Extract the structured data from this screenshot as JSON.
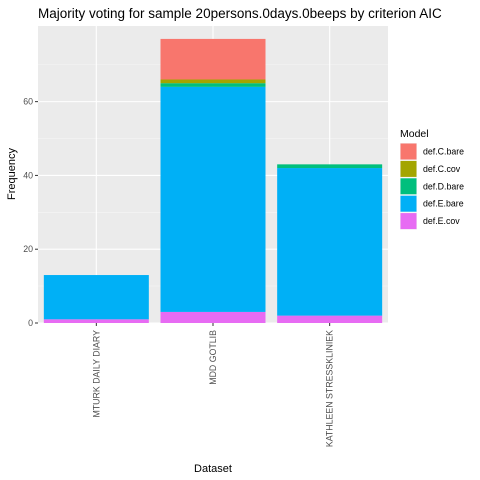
{
  "chart_data": {
    "type": "bar",
    "stacked": true,
    "title": "Majority voting for sample 20persons.0days.0beeps by criterion AIC",
    "xlabel": "Dataset",
    "ylabel": "Frequency",
    "categories": [
      "MTURK DAILY DIARY",
      "MDD GOTLIB",
      "KATHLEEN STRESSKLINIEK"
    ],
    "ylim": [
      0,
      80.5
    ],
    "yticks": [
      0,
      20,
      40,
      60
    ],
    "grid": true,
    "legend": {
      "title": "Model",
      "position": "right"
    },
    "series": [
      {
        "name": "def.C.bare",
        "color": "#F8766D",
        "values": [
          0,
          11,
          0
        ]
      },
      {
        "name": "def.C.cov",
        "color": "#A3A500",
        "values": [
          0,
          1,
          0
        ]
      },
      {
        "name": "def.D.bare",
        "color": "#00BF7D",
        "values": [
          0,
          1,
          1
        ]
      },
      {
        "name": "def.E.bare",
        "color": "#00B0F6",
        "values": [
          12,
          61,
          40
        ]
      },
      {
        "name": "def.E.cov",
        "color": "#E76BF3",
        "values": [
          1,
          3,
          2
        ]
      }
    ]
  }
}
